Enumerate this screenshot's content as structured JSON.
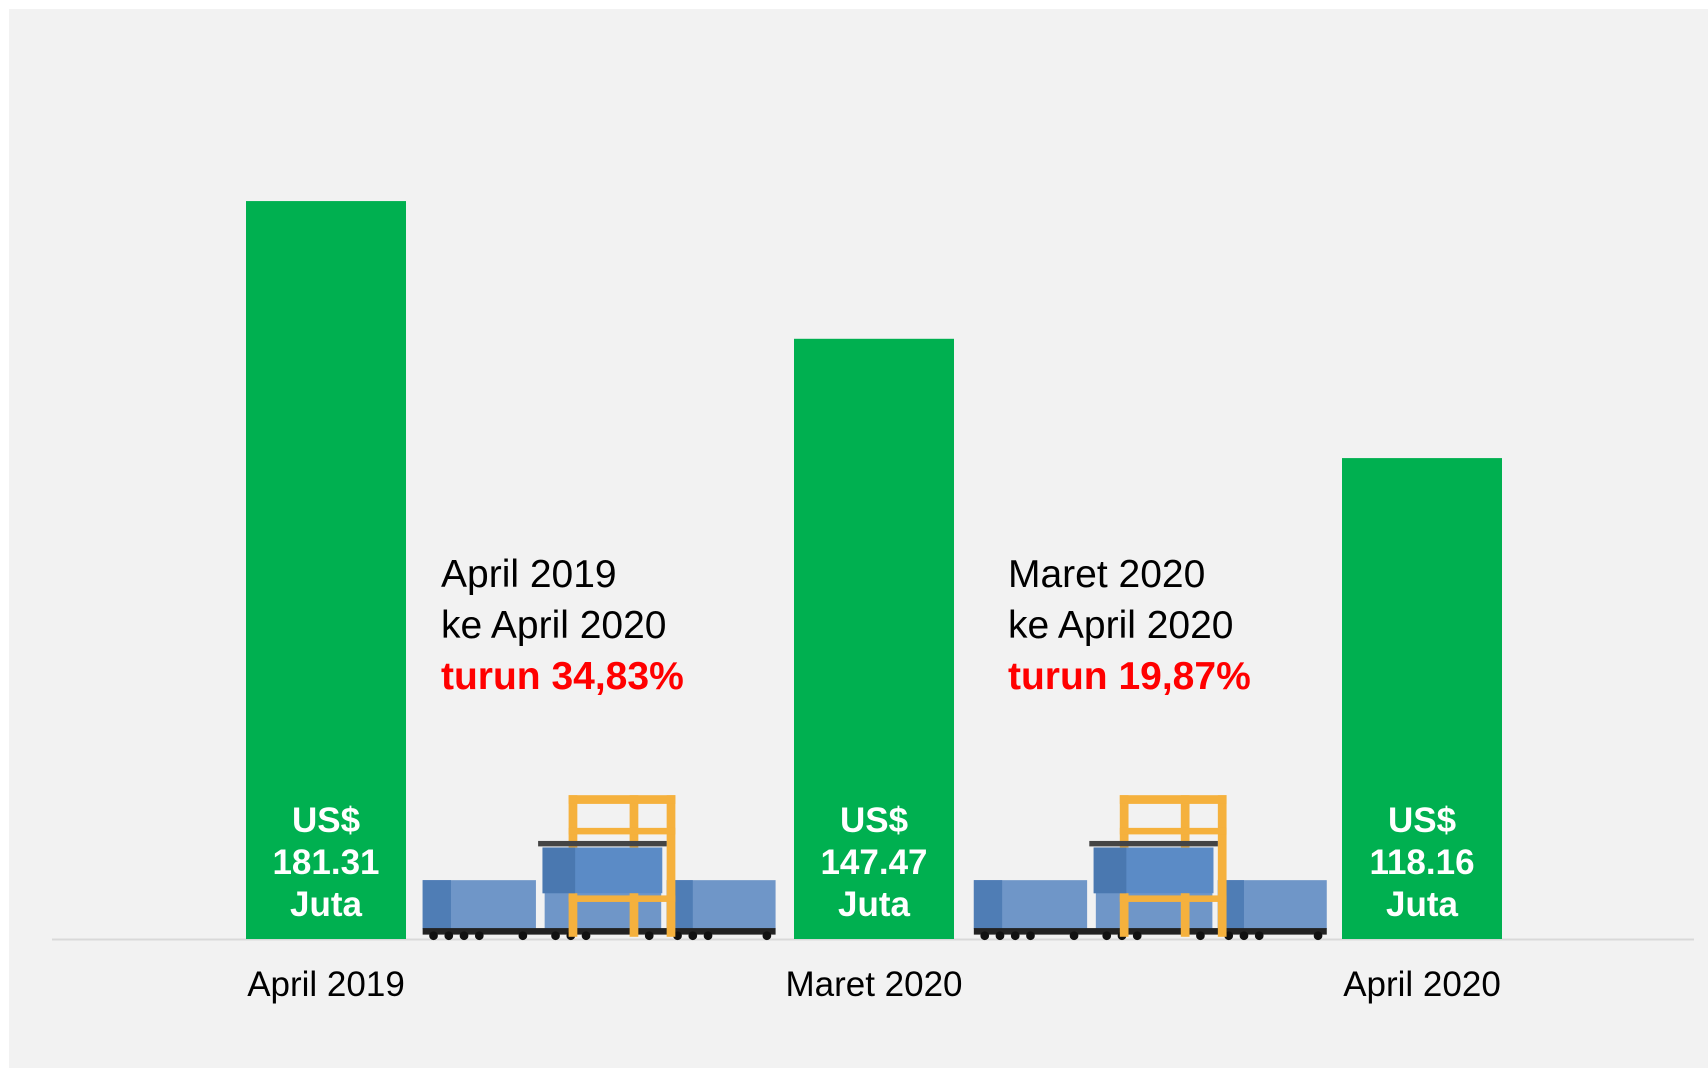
{
  "chart_data": {
    "type": "bar",
    "categories": [
      "April 2019",
      "Maret 2020",
      "April 2020"
    ],
    "values": [
      181.31,
      147.47,
      118.16
    ],
    "value_labels": [
      "US$ 181.31 Juta",
      "US$ 147.47 Juta",
      "US$ 118.16 Juta"
    ],
    "color": "#00b050",
    "ylim": [
      0,
      200
    ],
    "annotations": [
      {
        "lines": [
          "April 2019",
          "ke April 2020"
        ],
        "highlight": "turun 34,83%"
      },
      {
        "lines": [
          "Maret 2020",
          "ke April 2020"
        ],
        "highlight": "turun 19,87%"
      }
    ]
  }
}
